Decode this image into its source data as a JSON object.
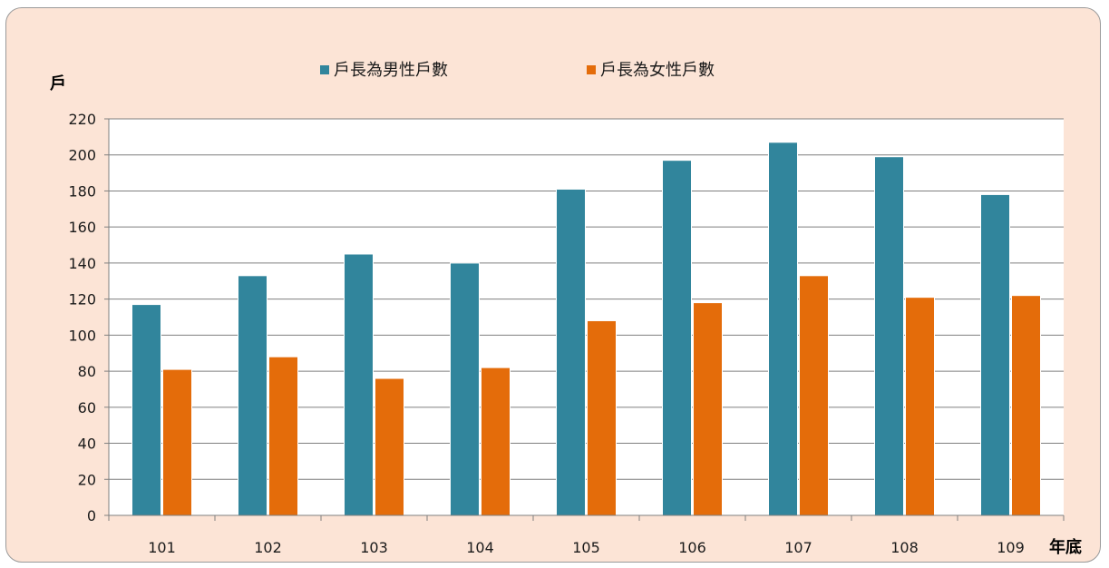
{
  "chart_data": {
    "type": "bar",
    "title": "",
    "ylabel": "戶",
    "xlabel": "年底",
    "ylim": [
      0,
      220
    ],
    "ytick_step": 20,
    "grid": true,
    "legend_position": "top",
    "categories": [
      "101",
      "102",
      "103",
      "104",
      "105",
      "106",
      "107",
      "108",
      "109"
    ],
    "series": [
      {
        "name": "戶長為男性戶數",
        "color": "#31859c",
        "values": [
          117,
          133,
          145,
          140,
          181,
          197,
          207,
          199,
          178
        ]
      },
      {
        "name": "戶長為女性戶數",
        "color": "#e46c0a",
        "values": [
          81,
          88,
          76,
          82,
          108,
          118,
          133,
          121,
          122
        ]
      }
    ]
  }
}
